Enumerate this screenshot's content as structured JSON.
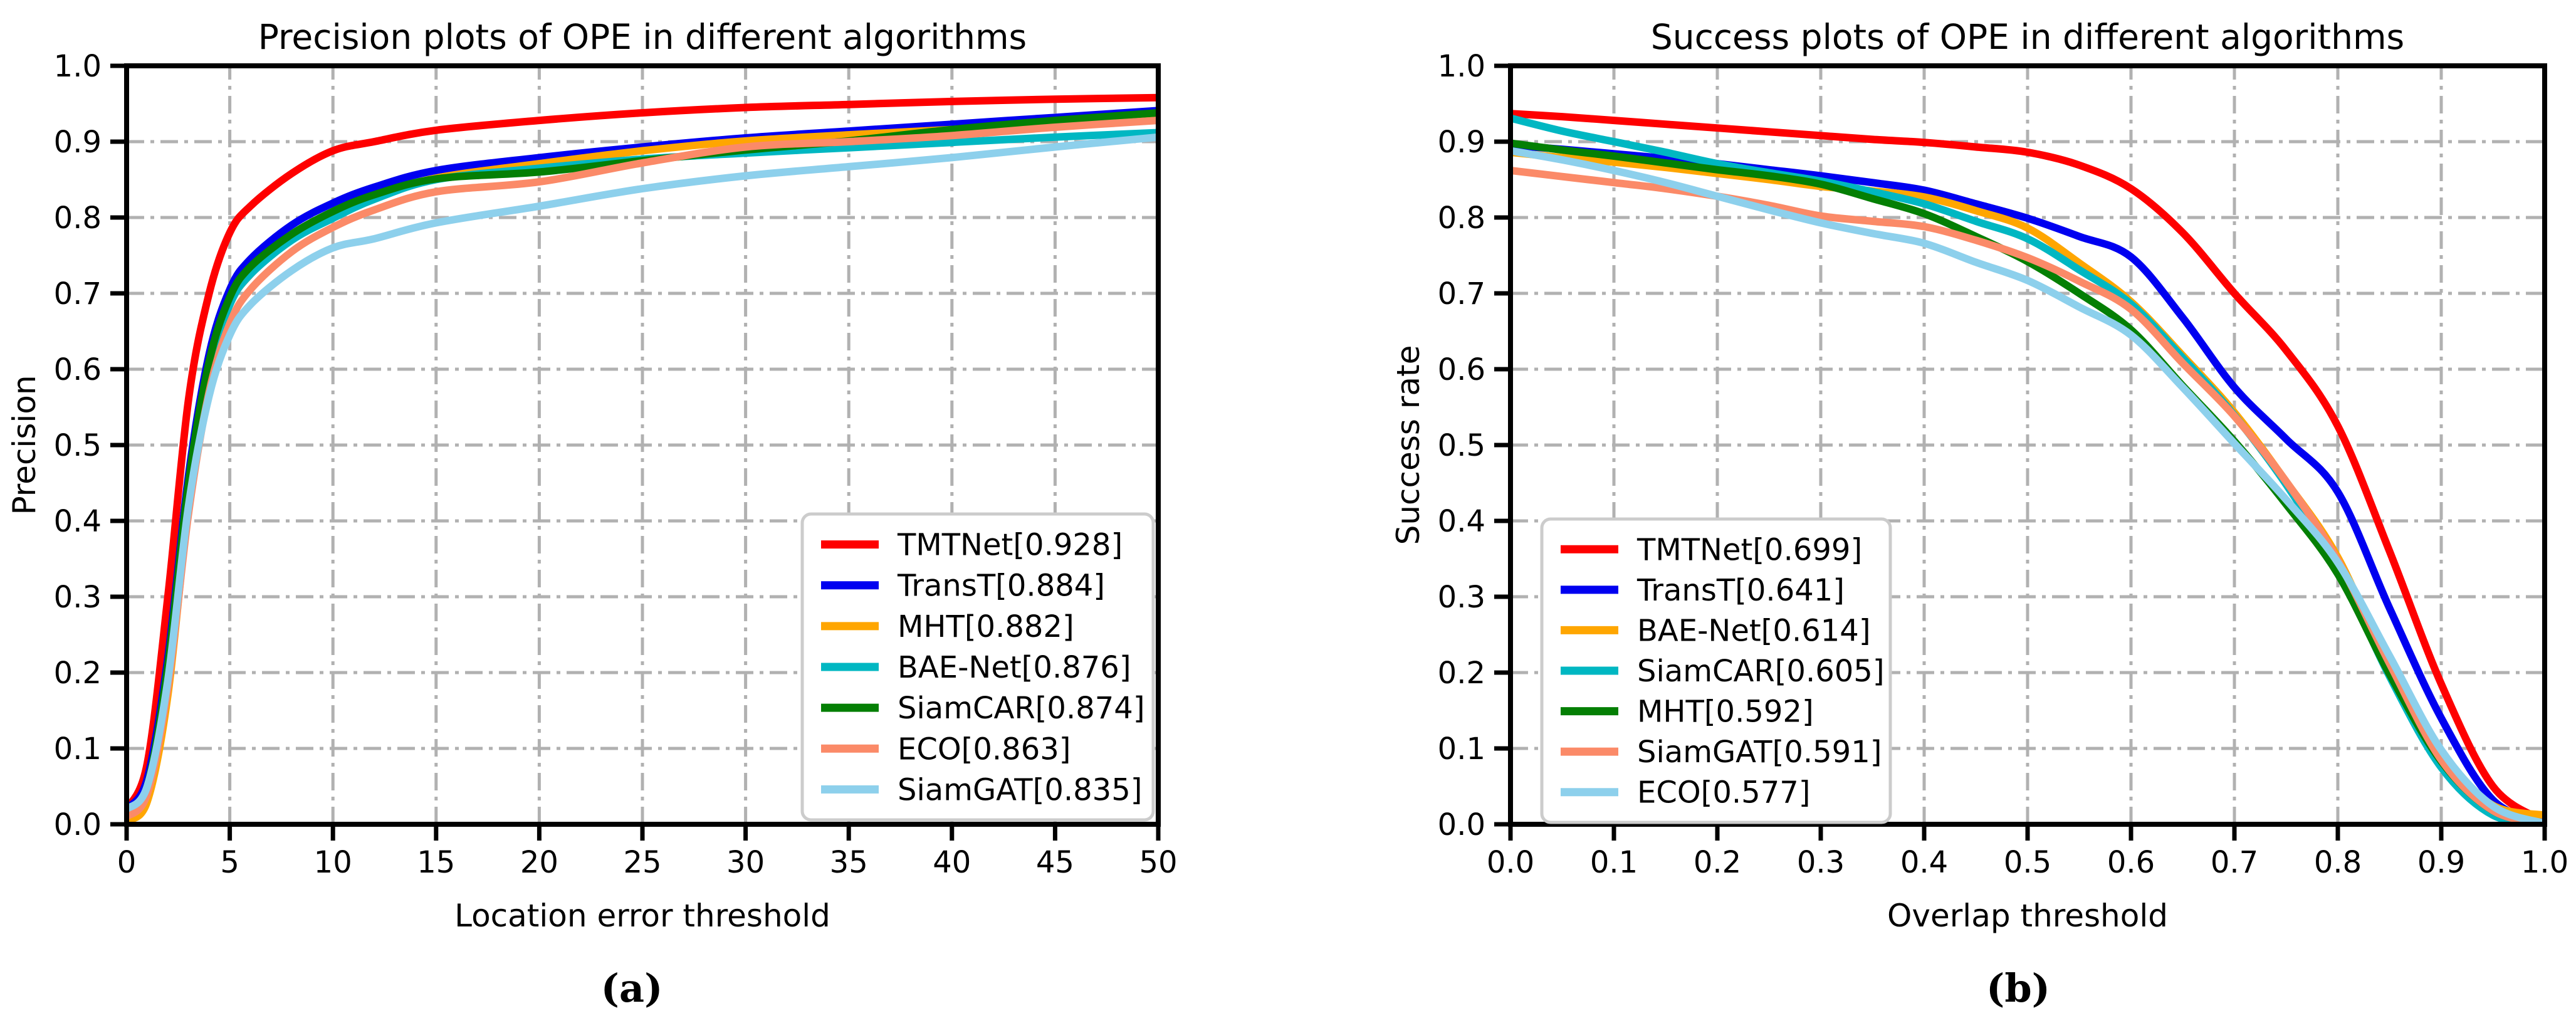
{
  "captions": {
    "a": "(a)",
    "b": "(b)"
  },
  "colors": {
    "TMTNet": "#fe0000",
    "TransT": "#0000f0",
    "MHT_precision": "#ffa600",
    "BAE-Net_precision": "#00b7c2",
    "SiamCAR_precision": "#047f04",
    "ECO_precision": "#fb8a68",
    "SiamGAT_precision": "#8dd0ec",
    "grid": "#b1b1b1",
    "spine": "#000000",
    "legend_border": "#cccccc"
  },
  "chart_data": [
    {
      "type": "line",
      "id": "precision",
      "title": "Precision plots of OPE in different algorithms",
      "xlabel": "Location error threshold",
      "ylabel": "Precision",
      "xlim": [
        0,
        50
      ],
      "ylim": [
        0.0,
        1.0
      ],
      "grid": true,
      "legend_position": "lower right",
      "xticks": [
        0,
        5,
        10,
        15,
        20,
        25,
        30,
        35,
        40,
        45,
        50
      ],
      "xtick_labels": [
        "0",
        "5",
        "10",
        "15",
        "20",
        "25",
        "30",
        "35",
        "40",
        "45",
        "50"
      ],
      "yticks": [
        0.0,
        0.1,
        0.2,
        0.3,
        0.4,
        0.5,
        0.6,
        0.7,
        0.8,
        0.9,
        1.0
      ],
      "ytick_labels": [
        "0.0",
        "0.1",
        "0.2",
        "0.3",
        "0.4",
        "0.5",
        "0.6",
        "0.7",
        "0.8",
        "0.9",
        "1.0"
      ],
      "x": [
        0,
        1,
        2,
        3,
        4,
        5,
        6,
        8,
        10,
        12,
        15,
        20,
        25,
        30,
        35,
        40,
        45,
        50
      ],
      "series": [
        {
          "name": "TMTNet",
          "label": "TMTNet[0.928]",
          "score": 0.928,
          "color": "#fe0000",
          "values": [
            0.02,
            0.08,
            0.3,
            0.56,
            0.7,
            0.78,
            0.815,
            0.858,
            0.888,
            0.9,
            0.915,
            0.928,
            0.938,
            0.945,
            0.949,
            0.953,
            0.956,
            0.958
          ]
        },
        {
          "name": "TransT",
          "label": "TransT[0.884]",
          "score": 0.884,
          "color": "#0000f0",
          "values": [
            0.02,
            0.06,
            0.22,
            0.46,
            0.62,
            0.705,
            0.745,
            0.79,
            0.819,
            0.84,
            0.862,
            0.879,
            0.893,
            0.905,
            0.914,
            0.923,
            0.932,
            0.941
          ]
        },
        {
          "name": "MHT",
          "label": "MHT[0.882]",
          "score": 0.882,
          "color": "#ffa600",
          "values": [
            0.005,
            0.03,
            0.17,
            0.42,
            0.595,
            0.685,
            0.725,
            0.775,
            0.803,
            0.828,
            0.852,
            0.871,
            0.888,
            0.901,
            0.909,
            0.916,
            0.923,
            0.931
          ]
        },
        {
          "name": "BAE-Net",
          "label": "BAE-Net[0.876]",
          "score": 0.876,
          "color": "#00b7c2",
          "values": [
            0.02,
            0.05,
            0.2,
            0.44,
            0.6,
            0.685,
            0.725,
            0.77,
            0.799,
            0.824,
            0.85,
            0.865,
            0.877,
            0.885,
            0.892,
            0.899,
            0.906,
            0.912
          ]
        },
        {
          "name": "SiamCAR",
          "label": "SiamCAR[0.874]",
          "score": 0.874,
          "color": "#047f04",
          "values": [
            0.02,
            0.05,
            0.21,
            0.45,
            0.61,
            0.695,
            0.735,
            0.778,
            0.808,
            0.83,
            0.851,
            0.86,
            0.875,
            0.889,
            0.901,
            0.916,
            0.928,
            0.938
          ]
        },
        {
          "name": "ECO",
          "label": "ECO[0.863]",
          "score": 0.863,
          "color": "#fb8a68",
          "values": [
            0.01,
            0.04,
            0.18,
            0.41,
            0.57,
            0.66,
            0.705,
            0.755,
            0.787,
            0.81,
            0.834,
            0.847,
            0.872,
            0.893,
            0.9,
            0.908,
            0.919,
            0.928
          ]
        },
        {
          "name": "SiamGAT",
          "label": "SiamGAT[0.835]",
          "score": 0.835,
          "color": "#8dd0ec",
          "values": [
            0.02,
            0.05,
            0.19,
            0.42,
            0.565,
            0.645,
            0.685,
            0.73,
            0.76,
            0.772,
            0.793,
            0.815,
            0.838,
            0.855,
            0.867,
            0.879,
            0.893,
            0.906
          ]
        }
      ]
    },
    {
      "type": "line",
      "id": "success",
      "title": "Success plots of OPE in different algorithms",
      "xlabel": "Overlap threshold",
      "ylabel": "Success rate",
      "xlim": [
        0.0,
        1.0
      ],
      "ylim": [
        0.0,
        1.0
      ],
      "grid": true,
      "legend_position": "lower left",
      "xticks": [
        0.0,
        0.1,
        0.2,
        0.3,
        0.4,
        0.5,
        0.6,
        0.7,
        0.8,
        0.9,
        1.0
      ],
      "xtick_labels": [
        "0.0",
        "0.1",
        "0.2",
        "0.3",
        "0.4",
        "0.5",
        "0.6",
        "0.7",
        "0.8",
        "0.9",
        "1.0"
      ],
      "yticks": [
        0.0,
        0.1,
        0.2,
        0.3,
        0.4,
        0.5,
        0.6,
        0.7,
        0.8,
        0.9,
        1.0
      ],
      "ytick_labels": [
        "0.0",
        "0.1",
        "0.2",
        "0.3",
        "0.4",
        "0.5",
        "0.6",
        "0.7",
        "0.8",
        "0.9",
        "1.0"
      ],
      "x": [
        0,
        0.05,
        0.1,
        0.15,
        0.2,
        0.25,
        0.3,
        0.35,
        0.4,
        0.45,
        0.5,
        0.55,
        0.6,
        0.65,
        0.7,
        0.75,
        0.8,
        0.85,
        0.9,
        0.95,
        1.0
      ],
      "series": [
        {
          "name": "TMTNet",
          "label": "TMTNet[0.699]",
          "score": 0.699,
          "color": "#fe0000",
          "values": [
            0.937,
            0.933,
            0.928,
            0.923,
            0.918,
            0.913,
            0.908,
            0.903,
            0.899,
            0.893,
            0.886,
            0.869,
            0.838,
            0.78,
            0.7,
            0.625,
            0.525,
            0.36,
            0.185,
            0.05,
            0.004
          ]
        },
        {
          "name": "TransT",
          "label": "TransT[0.641]",
          "score": 0.641,
          "color": "#0000f0",
          "values": [
            0.895,
            0.89,
            0.884,
            0.878,
            0.871,
            0.863,
            0.855,
            0.846,
            0.836,
            0.818,
            0.799,
            0.775,
            0.748,
            0.668,
            0.576,
            0.508,
            0.438,
            0.285,
            0.14,
            0.032,
            0.002
          ]
        },
        {
          "name": "BAE-Net",
          "label": "BAE-Net[0.614]",
          "score": 0.614,
          "color": "#ffa600",
          "values": [
            0.886,
            0.879,
            0.873,
            0.866,
            0.858,
            0.85,
            0.841,
            0.835,
            0.827,
            0.809,
            0.786,
            0.74,
            0.689,
            0.618,
            0.543,
            0.452,
            0.352,
            0.205,
            0.088,
            0.025,
            0.012
          ]
        },
        {
          "name": "SiamCAR",
          "label": "SiamCAR[0.605]",
          "score": 0.605,
          "color": "#00b7c2",
          "values": [
            0.931,
            0.914,
            0.9,
            0.886,
            0.871,
            0.859,
            0.848,
            0.834,
            0.818,
            0.795,
            0.772,
            0.731,
            0.686,
            0.615,
            0.539,
            0.448,
            0.338,
            0.195,
            0.075,
            0.012,
            0.001
          ]
        },
        {
          "name": "MHT",
          "label": "MHT[0.592]",
          "score": 0.592,
          "color": "#047f04",
          "values": [
            0.898,
            0.889,
            0.881,
            0.872,
            0.863,
            0.855,
            0.844,
            0.825,
            0.805,
            0.775,
            0.742,
            0.7,
            0.652,
            0.578,
            0.505,
            0.422,
            0.33,
            0.198,
            0.083,
            0.018,
            0.001
          ]
        },
        {
          "name": "SiamGAT",
          "label": "SiamGAT[0.591]",
          "score": 0.591,
          "color": "#fb8a68",
          "values": [
            0.862,
            0.854,
            0.846,
            0.838,
            0.828,
            0.816,
            0.802,
            0.795,
            0.788,
            0.77,
            0.747,
            0.716,
            0.679,
            0.608,
            0.538,
            0.452,
            0.348,
            0.212,
            0.085,
            0.018,
            0.001
          ]
        },
        {
          "name": "ECO",
          "label": "ECO[0.577]",
          "score": 0.577,
          "color": "#8dd0ec",
          "values": [
            0.888,
            0.876,
            0.862,
            0.846,
            0.828,
            0.81,
            0.793,
            0.779,
            0.766,
            0.741,
            0.717,
            0.682,
            0.645,
            0.576,
            0.502,
            0.428,
            0.345,
            0.222,
            0.098,
            0.024,
            0.001
          ]
        }
      ]
    }
  ]
}
